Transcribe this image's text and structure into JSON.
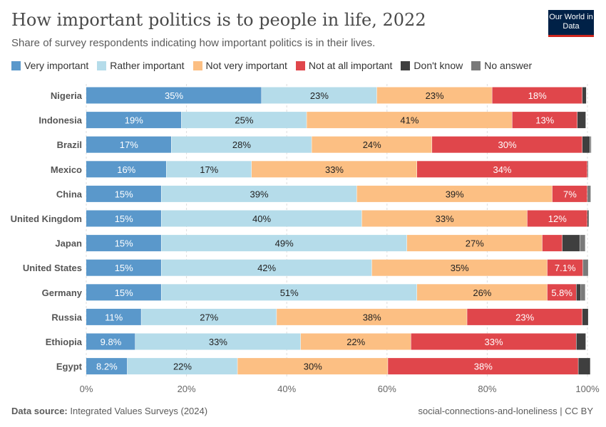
{
  "title": "How important politics is to people in life, 2022",
  "subtitle": "Share of survey respondents indicating how important politics is in their lives.",
  "logo": "Our World in Data",
  "footer": {
    "source_label": "Data source:",
    "source": "Integrated Values Surveys (2024)",
    "right": "social-connections-and-loneliness | CC BY"
  },
  "chart_data": {
    "type": "bar",
    "orientation": "horizontal",
    "stacked": true,
    "title": "How important politics is to people in life, 2022",
    "xlim": [
      0,
      100
    ],
    "x_ticks": [
      "0%",
      "20%",
      "40%",
      "60%",
      "80%",
      "100%"
    ],
    "grid": "vertical dashed",
    "legend": "top",
    "categories": [
      "Nigeria",
      "Indonesia",
      "Brazil",
      "Mexico",
      "China",
      "United Kingdom",
      "Japan",
      "United States",
      "Germany",
      "Russia",
      "Ethiopia",
      "Egypt"
    ],
    "series": [
      {
        "name": "Very important",
        "color": "#5a98cb",
        "text": "#fff",
        "values": [
          35,
          19,
          17,
          16,
          15,
          15,
          15,
          15,
          15,
          11,
          9.8,
          8.2
        ],
        "labels": [
          "35%",
          "19%",
          "17%",
          "16%",
          "15%",
          "15%",
          "15%",
          "15%",
          "15%",
          "11%",
          "9.8%",
          "8.2%"
        ]
      },
      {
        "name": "Rather important",
        "color": "#b5dcea",
        "text": "#222",
        "values": [
          23,
          25,
          28,
          17,
          39,
          40,
          49,
          42,
          51,
          27,
          33,
          22
        ],
        "labels": [
          "23%",
          "25%",
          "28%",
          "17%",
          "39%",
          "40%",
          "49%",
          "42%",
          "51%",
          "27%",
          "33%",
          "22%"
        ]
      },
      {
        "name": "Not very important",
        "color": "#fcbf83",
        "text": "#222",
        "values": [
          23,
          41,
          24,
          33,
          39,
          33,
          27,
          35,
          26,
          38,
          22,
          30
        ],
        "labels": [
          "23%",
          "41%",
          "24%",
          "33%",
          "39%",
          "33%",
          "27%",
          "35%",
          "26%",
          "38%",
          "22%",
          "30%"
        ]
      },
      {
        "name": "Not at all important",
        "color": "#e0464b",
        "text": "#fff",
        "values": [
          18,
          13,
          30,
          34,
          7,
          12,
          4,
          7.1,
          5.8,
          23,
          33,
          38
        ],
        "labels": [
          "18%",
          "13%",
          "30%",
          "34%",
          "7%",
          "12%",
          "",
          "7.1%",
          "5.8%",
          "23%",
          "33%",
          "38%"
        ]
      },
      {
        "name": "Don't know",
        "color": "#3f3f3f",
        "text": "#fff",
        "values": [
          0.8,
          1.7,
          1.5,
          0,
          0,
          0.3,
          3.5,
          0,
          0.9,
          1.2,
          1.9,
          2.4
        ],
        "labels": [
          "",
          "",
          "",
          "",
          "",
          "",
          "",
          "",
          "",
          "",
          "",
          ""
        ]
      },
      {
        "name": "No answer",
        "color": "#7a7a7a",
        "text": "#fff",
        "values": [
          0,
          0,
          0.3,
          0.2,
          0.7,
          0,
          1.1,
          1.1,
          0.9,
          0,
          0,
          0
        ],
        "labels": [
          "",
          "",
          "",
          "",
          "",
          "",
          "",
          "",
          "",
          "",
          "",
          ""
        ]
      }
    ]
  }
}
